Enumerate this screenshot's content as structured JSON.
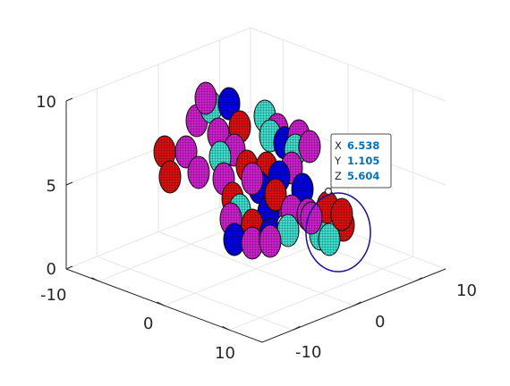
{
  "chart_data": {
    "type": "scatter3d",
    "title": "",
    "xlabel": "",
    "ylabel": "",
    "zlabel": "",
    "xlim": [
      -15,
      15
    ],
    "ylim": [
      -15,
      15
    ],
    "zlim": [
      0,
      10
    ],
    "xticks": [
      "-10",
      "0",
      "10"
    ],
    "yticks": [
      "-10",
      "0",
      "10"
    ],
    "zticks": [
      "0",
      "5",
      "10"
    ],
    "grid": true,
    "view": "isometric 3-D (azimuth -37.5, elevation 30)",
    "marker": "ellipsoid spheres",
    "series_colors": {
      "red": "#e01010",
      "magenta": "#d020d0",
      "cyan": "#40e0d0",
      "blue": "#0000e8"
    },
    "highlight_color": "#1a0f9e",
    "datatip": {
      "x_key": "X",
      "y_key": "Y",
      "z_key": "Z",
      "x": "6.538",
      "y": "1.105",
      "z": "5.604"
    }
  }
}
